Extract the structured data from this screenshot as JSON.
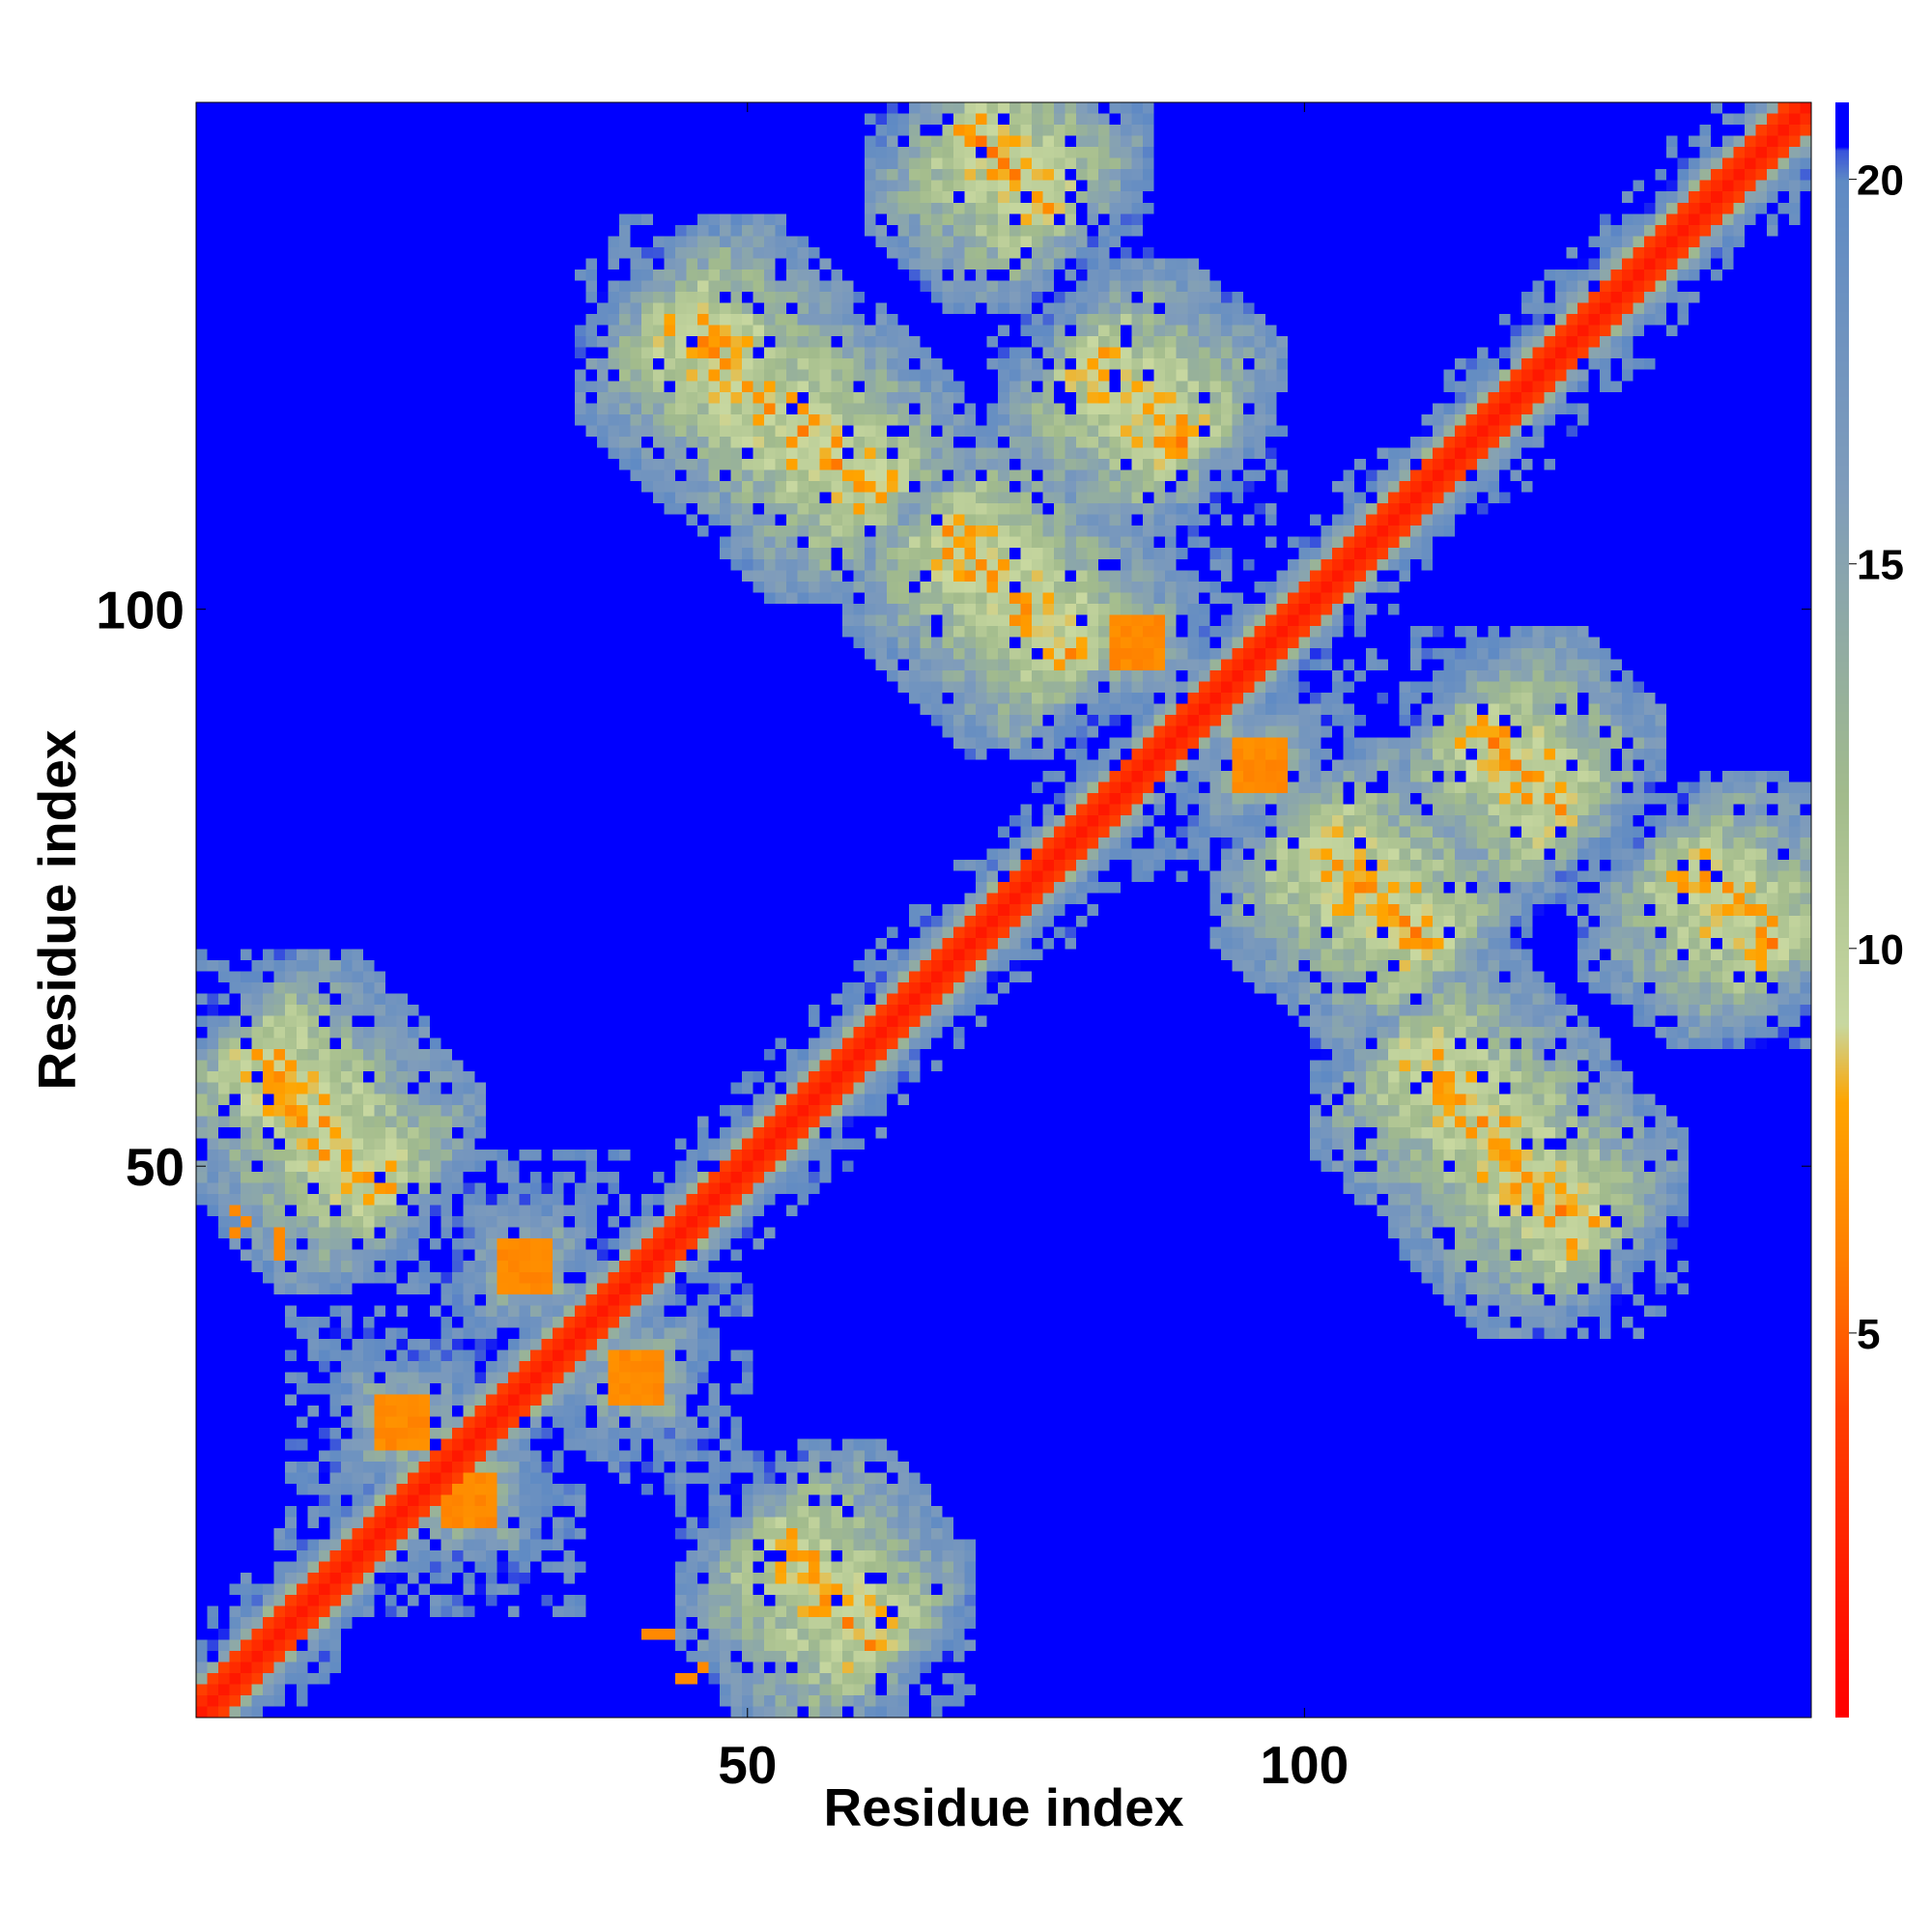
{
  "chart_data": {
    "type": "heatmap",
    "title": "",
    "xlabel": "Residue index",
    "ylabel": "Residue index",
    "n_residues": 145,
    "xlim": [
      1,
      145
    ],
    "ylim": [
      1,
      145
    ],
    "x_ticks": [
      50,
      100
    ],
    "y_ticks": [
      50,
      100
    ],
    "colorbar": {
      "range": [
        0,
        21
      ],
      "ticks": [
        5,
        10,
        15,
        20
      ],
      "stops": [
        {
          "value": 0,
          "color": "#ff0000"
        },
        {
          "value": 4,
          "color": "#ff4000"
        },
        {
          "value": 6,
          "color": "#ff8000"
        },
        {
          "value": 8,
          "color": "#ffa500"
        },
        {
          "value": 9,
          "color": "#c8d8a0"
        },
        {
          "value": 12,
          "color": "#a2bb8c"
        },
        {
          "value": 16,
          "color": "#7f9cbb"
        },
        {
          "value": 20,
          "color": "#5f8ac4"
        },
        {
          "value": 21,
          "color": "#0000ff"
        }
      ],
      "far_color": "#0000ff"
    },
    "distance_cutoff": 21,
    "diagonal": {
      "start": 1,
      "end": 145,
      "width": 2
    },
    "contact_bands": [
      {
        "i": [
          70,
          77
        ],
        "j": [
          136,
          143
        ],
        "orientation": "anti"
      },
      {
        "i": [
          44,
          61
        ],
        "j": [
          110,
          126
        ],
        "orientation": "anti"
      },
      {
        "i": [
          68,
          79
        ],
        "j": [
          96,
          107
        ],
        "orientation": "anti"
      },
      {
        "i": [
          81,
          89
        ],
        "j": [
          115,
          122
        ],
        "orientation": "anti"
      },
      {
        "i": [
          116,
          123
        ],
        "j": [
          82,
          89
        ],
        "orientation": "anti"
      },
      {
        "i": [
          134,
          142
        ],
        "j": [
          70,
          76
        ],
        "orientation": "anti"
      },
      {
        "i": [
          101,
          111
        ],
        "j": [
          70,
          79
        ],
        "orientation": "anti"
      },
      {
        "i": [
          110,
          125
        ],
        "j": [
          44,
          60
        ],
        "orientation": "anti"
      },
      {
        "i": [
          6,
          17
        ],
        "j": [
          48,
          60
        ],
        "orientation": "anti"
      },
      {
        "i": [
          53,
          61
        ],
        "j": [
          7,
          16
        ],
        "orientation": "anti"
      }
    ],
    "contact_patches": [
      {
        "i": 85,
        "j": 97,
        "size": 4
      },
      {
        "i": 96,
        "j": 86,
        "size": 4
      },
      {
        "i": 30,
        "j": 41,
        "size": 3
      },
      {
        "i": 40,
        "j": 31,
        "size": 3
      },
      {
        "i": 19,
        "j": 27,
        "size": 3
      },
      {
        "i": 25,
        "j": 20,
        "size": 3
      }
    ],
    "isolated_contacts": [
      {
        "i": 4,
        "j": 44
      },
      {
        "i": 4,
        "j": 46
      },
      {
        "i": 5,
        "j": 45
      },
      {
        "i": 8,
        "j": 42
      },
      {
        "i": 8,
        "j": 43
      },
      {
        "i": 8,
        "j": 44
      },
      {
        "i": 41,
        "j": 8
      },
      {
        "i": 42,
        "j": 8
      },
      {
        "i": 43,
        "j": 8
      },
      {
        "i": 44,
        "j": 4
      },
      {
        "i": 45,
        "j": 4
      },
      {
        "i": 46,
        "j": 5
      }
    ],
    "background": "mostly >21 (far) with medium-distance halos around secondary structure contacts"
  }
}
